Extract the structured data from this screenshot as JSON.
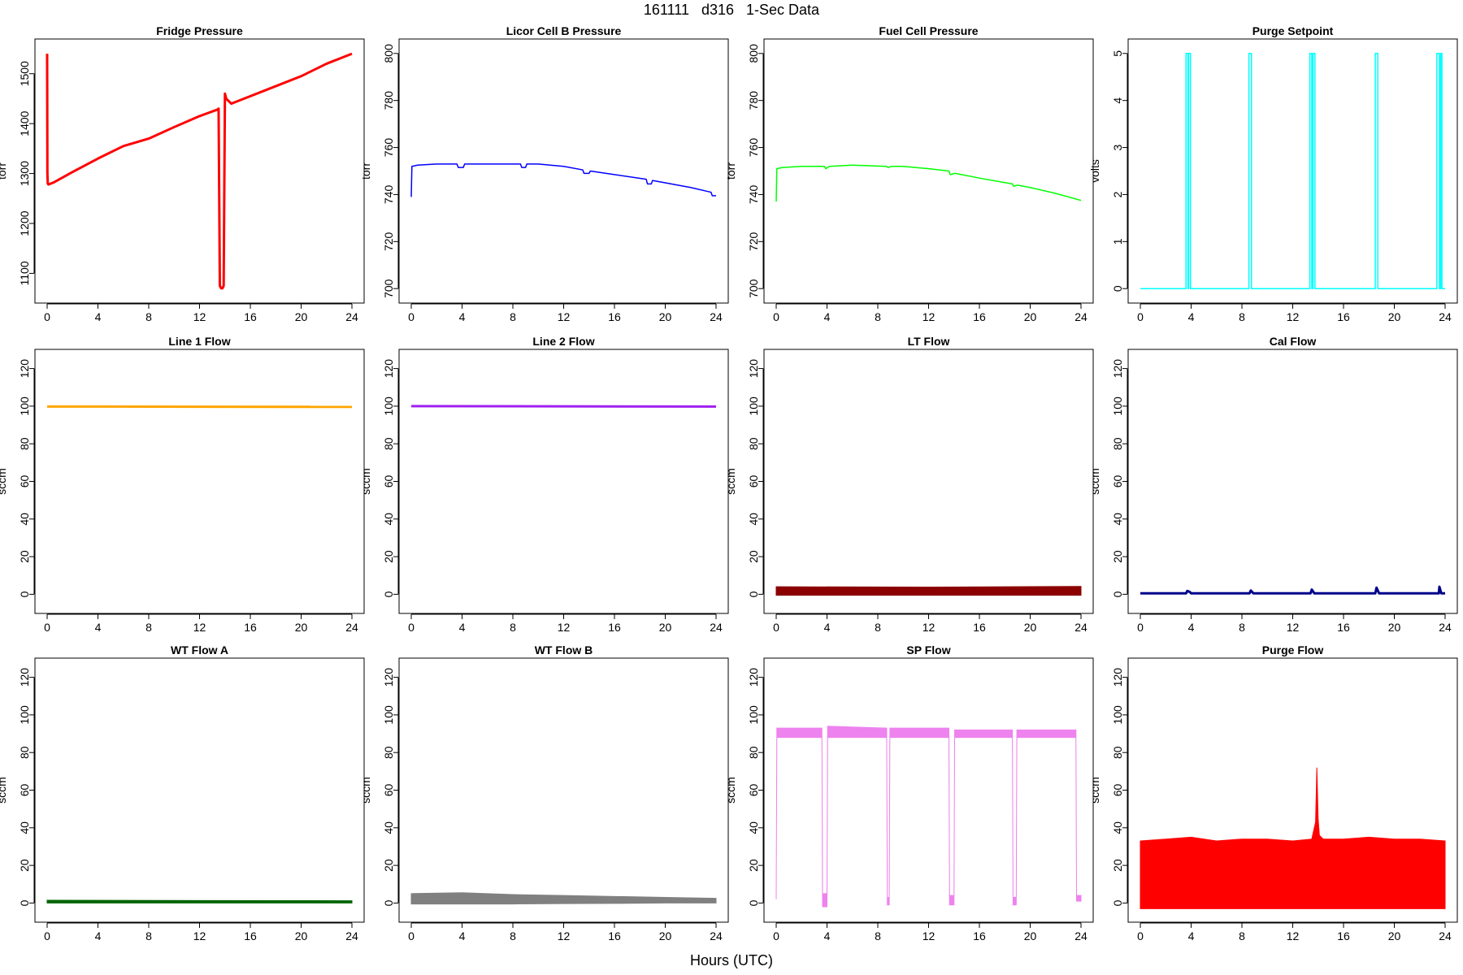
{
  "title": "161111   d316   1-Sec Data",
  "xlabel": "Hours (UTC)",
  "chart_data": [
    {
      "type": "line",
      "title": "Fridge Pressure",
      "ylabel": "torr",
      "color": "#ff0000",
      "xlim": [
        0,
        24
      ],
      "ylim": [
        1060,
        1550
      ],
      "yticks": [
        1100,
        1200,
        1300,
        1400,
        1500
      ],
      "xticks": [
        0,
        4,
        8,
        12,
        16,
        20,
        24
      ],
      "x": [
        0,
        0.02,
        0.05,
        0.1,
        0.5,
        2,
        4,
        6,
        8,
        10,
        12,
        13.4,
        13.5,
        13.6,
        13.7,
        13.8,
        13.9,
        14.0,
        14.1,
        14.5,
        15,
        16,
        18,
        20,
        22,
        24
      ],
      "y": [
        1540,
        1300,
        1280,
        1278,
        1282,
        1303,
        1330,
        1355,
        1370,
        1393,
        1415,
        1428,
        1430,
        1075,
        1070,
        1070,
        1075,
        1460,
        1450,
        1440,
        1445,
        1455,
        1475,
        1495,
        1520,
        1540
      ]
    },
    {
      "type": "line",
      "title": "Licor Cell B Pressure",
      "ylabel": "torr",
      "color": "#0000ff",
      "xlim": [
        0,
        24
      ],
      "ylim": [
        698,
        802
      ],
      "yticks": [
        700,
        720,
        740,
        760,
        780,
        800
      ],
      "xticks": [
        0,
        4,
        8,
        12,
        16,
        20,
        24
      ],
      "x": [
        0,
        0.05,
        0.5,
        2,
        3.6,
        3.7,
        4.1,
        4.2,
        6,
        8.6,
        8.7,
        9.0,
        9.1,
        10,
        12,
        13.5,
        13.6,
        14.0,
        14.1,
        16,
        18.5,
        18.6,
        18.9,
        19.0,
        20,
        22,
        23.6,
        23.7,
        24
      ],
      "y": [
        739,
        752,
        752.5,
        753,
        753,
        751.5,
        751.5,
        753,
        753,
        753,
        751.5,
        751.5,
        753,
        753,
        752,
        750.5,
        749,
        749,
        750,
        748.5,
        746.5,
        744.5,
        744.5,
        746,
        745,
        743,
        741,
        739.5,
        739.5
      ]
    },
    {
      "type": "line",
      "title": "Fuel Cell Pressure",
      "ylabel": "torr",
      "color": "#00ff00",
      "xlim": [
        0,
        24
      ],
      "ylim": [
        698,
        802
      ],
      "yticks": [
        700,
        720,
        740,
        760,
        780,
        800
      ],
      "xticks": [
        0,
        4,
        8,
        12,
        16,
        20,
        24
      ],
      "x": [
        0,
        0.05,
        0.5,
        2,
        3.8,
        3.9,
        4.2,
        6,
        8.7,
        8.8,
        9.1,
        10,
        12,
        13.6,
        13.7,
        14.1,
        16,
        18.6,
        18.7,
        19.0,
        20,
        22,
        24
      ],
      "y": [
        737,
        751,
        751.5,
        752,
        752,
        751,
        752,
        752.5,
        752,
        751.5,
        752,
        752,
        751,
        750,
        748.5,
        749,
        747,
        744.5,
        743.5,
        744,
        743,
        740.5,
        737.5
      ]
    },
    {
      "type": "line",
      "title": "Purge Setpoint",
      "ylabel": "volts",
      "color": "#00ffff",
      "xlim": [
        0,
        24
      ],
      "ylim": [
        -0.1,
        5.1
      ],
      "yticks": [
        0,
        1,
        2,
        3,
        4,
        5
      ],
      "xticks": [
        0,
        4,
        8,
        12,
        16,
        20,
        24
      ],
      "x": [
        0,
        3.6,
        3.6,
        3.75,
        3.75,
        3.8,
        3.8,
        3.95,
        3.95,
        8.55,
        8.55,
        8.75,
        8.75,
        13.35,
        13.35,
        13.5,
        13.5,
        13.6,
        13.6,
        13.75,
        13.75,
        18.5,
        18.5,
        18.7,
        18.7,
        23.35,
        23.35,
        23.55,
        23.55,
        23.65,
        23.65,
        23.75,
        23.75,
        24
      ],
      "y": [
        0,
        0,
        5,
        5,
        0,
        0,
        5,
        5,
        0,
        0,
        5,
        5,
        0,
        0,
        5,
        5,
        0,
        0,
        5,
        5,
        0,
        0,
        5,
        5,
        0,
        0,
        5,
        5,
        0,
        0,
        5,
        5,
        0,
        0
      ]
    },
    {
      "type": "line",
      "title": "Line 1 Flow",
      "ylabel": "sccm",
      "color": "#ffa500",
      "xlim": [
        0,
        24
      ],
      "ylim": [
        -5,
        125
      ],
      "yticks": [
        0,
        20,
        40,
        60,
        80,
        100,
        120
      ],
      "xticks": [
        0,
        4,
        8,
        12,
        16,
        20,
        24
      ],
      "x": [
        0,
        24
      ],
      "y": [
        99.8,
        99.6
      ]
    },
    {
      "type": "line",
      "title": "Line 2 Flow",
      "ylabel": "sccm",
      "color": "#a020f0",
      "xlim": [
        0,
        24
      ],
      "ylim": [
        -5,
        125
      ],
      "yticks": [
        0,
        20,
        40,
        60,
        80,
        100,
        120
      ],
      "xticks": [
        0,
        4,
        8,
        12,
        16,
        20,
        24
      ],
      "x": [
        0,
        24
      ],
      "y": [
        100,
        99.8
      ]
    },
    {
      "type": "area",
      "title": "LT Flow",
      "ylabel": "sccm",
      "color": "#8b0000",
      "xlim": [
        0,
        24
      ],
      "ylim": [
        -5,
        125
      ],
      "yticks": [
        0,
        20,
        40,
        60,
        80,
        100,
        120
      ],
      "xticks": [
        0,
        4,
        8,
        12,
        16,
        20,
        24
      ],
      "x": [
        0,
        12,
        24
      ],
      "low": [
        -0.5,
        -0.5,
        -0.5
      ],
      "high": [
        4,
        3.8,
        4.2
      ]
    },
    {
      "type": "line",
      "title": "Cal Flow",
      "ylabel": "sccm",
      "color": "#00008b",
      "xlim": [
        0,
        24
      ],
      "ylim": [
        -5,
        125
      ],
      "yticks": [
        0,
        20,
        40,
        60,
        80,
        100,
        120
      ],
      "xticks": [
        0,
        4,
        8,
        12,
        16,
        20,
        24
      ],
      "x": [
        0,
        3.6,
        3.7,
        3.9,
        4.0,
        8.6,
        8.7,
        8.9,
        13.4,
        13.5,
        13.7,
        18.5,
        18.6,
        18.8,
        23.5,
        23.55,
        23.7,
        24
      ],
      "y": [
        0.5,
        0.5,
        1.8,
        1.2,
        0.5,
        0.5,
        2,
        0.5,
        0.5,
        2.5,
        0.5,
        0.5,
        3.5,
        0.5,
        0.5,
        4,
        0.5,
        0.5
      ]
    },
    {
      "type": "area",
      "title": "WT Flow A",
      "ylabel": "sccm",
      "color": "#006400",
      "xlim": [
        0,
        24
      ],
      "ylim": [
        -5,
        125
      ],
      "yticks": [
        0,
        20,
        40,
        60,
        80,
        100,
        120
      ],
      "xticks": [
        0,
        4,
        8,
        12,
        16,
        20,
        24
      ],
      "x": [
        0,
        24
      ],
      "low": [
        0,
        0
      ],
      "high": [
        1.5,
        1.2
      ]
    },
    {
      "type": "area",
      "title": "WT Flow B",
      "ylabel": "sccm",
      "color": "#808080",
      "xlim": [
        0,
        24
      ],
      "ylim": [
        -5,
        125
      ],
      "yticks": [
        0,
        20,
        40,
        60,
        80,
        100,
        120
      ],
      "xticks": [
        0,
        4,
        8,
        12,
        16,
        20,
        24
      ],
      "x": [
        0,
        4,
        8,
        12,
        16,
        20,
        24
      ],
      "low": [
        -0.5,
        -0.5,
        -0.5,
        -0.3,
        -0.2,
        0,
        0
      ],
      "high": [
        5,
        5.5,
        4.5,
        4,
        3.5,
        3,
        2.5
      ]
    },
    {
      "type": "area",
      "title": "SP Flow",
      "ylabel": "sccm",
      "color": "#ee82ee",
      "xlim": [
        0,
        24
      ],
      "ylim": [
        -5,
        125
      ],
      "yticks": [
        0,
        20,
        40,
        60,
        80,
        100,
        120
      ],
      "xticks": [
        0,
        4,
        8,
        12,
        16,
        20,
        24
      ],
      "x": [
        0,
        0.05,
        0.1,
        3.6,
        3.65,
        4.0,
        4.05,
        8.7,
        8.75,
        8.9,
        8.95,
        13.6,
        13.65,
        14.0,
        14.05,
        18.6,
        18.65,
        18.9,
        18.95,
        23.6,
        23.65,
        24
      ],
      "low": [
        2,
        88,
        88,
        88,
        -2,
        -2,
        88,
        88,
        -1,
        -1,
        88,
        88,
        -1,
        -1,
        88,
        88,
        -1,
        -1,
        88,
        88,
        1,
        1
      ],
      "high": [
        3,
        93,
        93,
        93,
        5,
        5,
        94,
        93,
        3,
        3,
        93,
        93,
        4,
        4,
        92,
        92,
        3,
        3,
        92,
        92,
        4,
        4
      ]
    },
    {
      "type": "area",
      "title": "Purge Flow",
      "ylabel": "sccm",
      "color": "#ff0000",
      "xlim": [
        0,
        24
      ],
      "ylim": [
        -5,
        125
      ],
      "yticks": [
        0,
        20,
        40,
        60,
        80,
        100,
        120
      ],
      "xticks": [
        0,
        4,
        8,
        12,
        16,
        20,
        24
      ],
      "x": [
        0,
        2,
        4,
        6,
        8,
        10,
        12,
        13.5,
        13.8,
        13.9,
        14.0,
        14.1,
        14.4,
        16,
        18,
        20,
        22,
        24
      ],
      "low": [
        -3,
        -3,
        -3,
        -3,
        -3,
        -3,
        -3,
        -3,
        -3,
        -3,
        -3,
        -3,
        -3,
        -3,
        -3,
        -3,
        -3,
        -3
      ],
      "high": [
        33,
        34,
        35,
        33,
        34,
        34,
        33,
        34,
        43,
        72,
        45,
        36,
        34,
        34,
        35,
        34,
        34,
        33
      ]
    }
  ]
}
